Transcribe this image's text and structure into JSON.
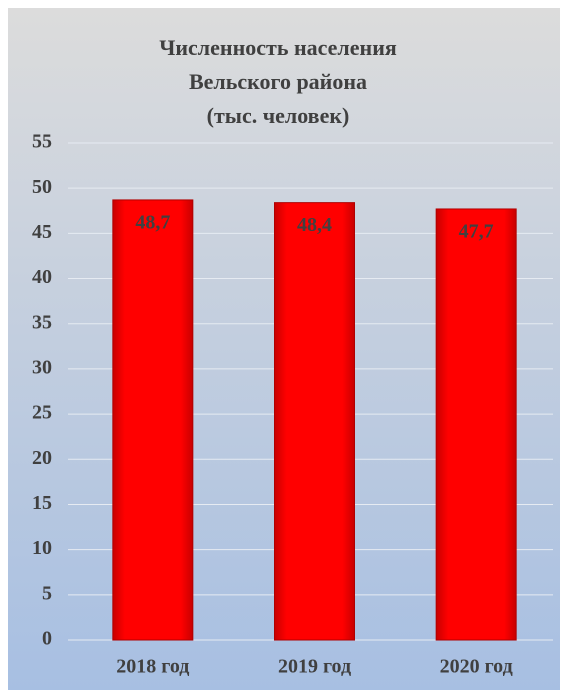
{
  "chart_data": {
    "type": "bar",
    "title": [
      "Численность населения",
      "Вельского района",
      "(тыс. человек)"
    ],
    "categories": [
      "2018 год",
      "2019 год",
      "2020 год"
    ],
    "values": [
      48.7,
      48.4,
      47.7
    ],
    "value_labels": [
      "48,7",
      "48,4",
      "47,7"
    ],
    "color": "#ff0000",
    "ylim": [
      0,
      55
    ],
    "yticks": [
      0,
      5,
      10,
      15,
      20,
      25,
      30,
      35,
      40,
      45,
      50,
      55
    ],
    "grid": true
  }
}
